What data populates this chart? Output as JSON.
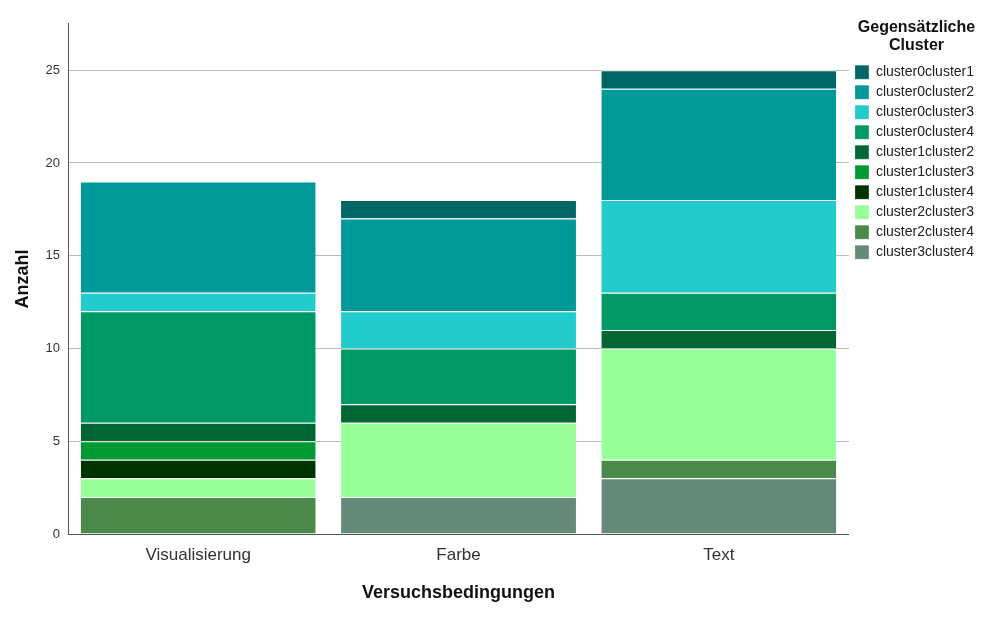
{
  "chart_data": {
    "type": "bar",
    "stacked": true,
    "xlabel": "Versuchsbedingungen",
    "ylabel": "Anzahl",
    "legend_title": "Gegensätzliche Cluster",
    "legend": "right",
    "grid": "y",
    "categories": [
      "Visualisierung",
      "Farbe",
      "Text"
    ],
    "ylim": [
      0,
      27.5
    ],
    "yticks": [
      0,
      5,
      10,
      15,
      20,
      25
    ],
    "series": [
      {
        "name": "cluster3cluster4",
        "color": "#668a7a",
        "values": [
          null,
          2,
          3
        ]
      },
      {
        "name": "cluster2cluster4",
        "color": "#4b8a4b",
        "values": [
          2,
          null,
          1
        ]
      },
      {
        "name": "cluster2cluster3",
        "color": "#99ff99",
        "values": [
          1,
          4,
          6
        ]
      },
      {
        "name": "cluster1cluster4",
        "color": "#003300",
        "values": [
          1,
          null,
          null
        ]
      },
      {
        "name": "cluster1cluster3",
        "color": "#009933",
        "values": [
          1,
          null,
          null
        ]
      },
      {
        "name": "cluster1cluster2",
        "color": "#006633",
        "values": [
          1,
          1,
          1
        ]
      },
      {
        "name": "cluster0cluster4",
        "color": "#009966",
        "values": [
          6,
          3,
          2
        ]
      },
      {
        "name": "cluster0cluster3",
        "color": "#22cccc",
        "values": [
          1,
          2,
          5
        ]
      },
      {
        "name": "cluster0cluster2",
        "color": "#009999",
        "values": [
          6,
          5,
          6
        ]
      },
      {
        "name": "cluster0cluster1",
        "color": "#006666",
        "values": [
          null,
          1,
          1
        ]
      }
    ]
  }
}
